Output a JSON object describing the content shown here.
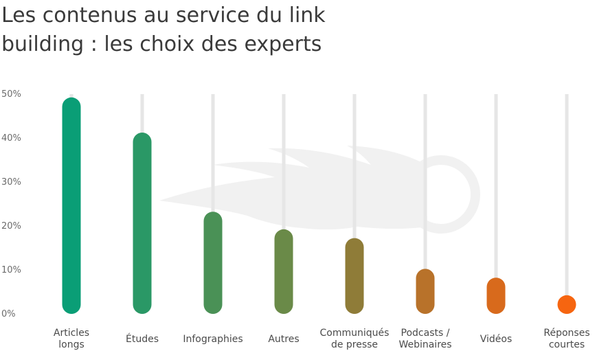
{
  "title_lines": [
    "Les contenus au service du link",
    "building : les choix des experts"
  ],
  "chart_data": {
    "type": "bar",
    "title": "Les contenus au service du link building : les choix des experts",
    "categories": [
      [
        "Articles",
        "longs"
      ],
      [
        "Études"
      ],
      [
        "Infographies"
      ],
      [
        "Autres"
      ],
      [
        "Communiqués",
        "de presse"
      ],
      [
        "Podcasts /",
        "Webinaires"
      ],
      [
        "Vidéos"
      ],
      [
        "Réponses",
        "courtes"
      ]
    ],
    "values": [
      48,
      40,
      22,
      18,
      16,
      9,
      7,
      3
    ],
    "colors": [
      "#0a9e76",
      "#2a9866",
      "#4a9156",
      "#6a8a48",
      "#8f7c38",
      "#b8722a",
      "#d86a1c",
      "#f66510"
    ],
    "ylim": [
      0,
      50
    ],
    "yticks": [
      "0%",
      "10%",
      "20%",
      "30%",
      "40%",
      "50%"
    ],
    "xlabel": "",
    "ylabel": "",
    "grid": "vertical track lines behind each bar",
    "legend": "none"
  }
}
